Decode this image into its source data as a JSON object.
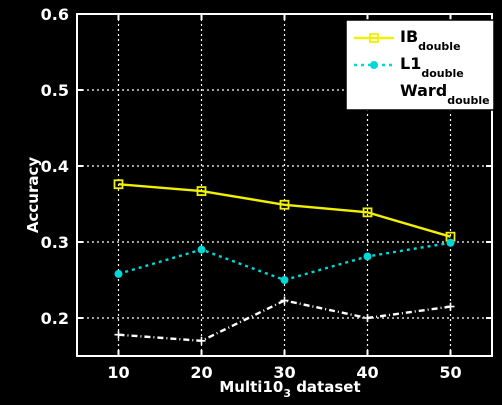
{
  "chart_data": {
    "type": "line",
    "x": [
      10,
      20,
      30,
      40,
      50
    ],
    "xlim": [
      5,
      55
    ],
    "ylim": [
      0.15,
      0.6
    ],
    "xticks": [
      10,
      20,
      30,
      40,
      50
    ],
    "yticks": [
      0.2,
      0.3,
      0.4,
      0.5,
      0.6
    ],
    "xtick_labels": [
      "10",
      "20",
      "30",
      "40",
      "50"
    ],
    "ytick_labels": [
      "0.2",
      "0.3",
      "0.4",
      "0.5",
      "0.6"
    ],
    "xlabel": {
      "main": "Multi10",
      "sub": "3",
      "suffix": " dataset"
    },
    "ylabel": "Accuracy",
    "grid": true,
    "legend_position": "top-right",
    "series": [
      {
        "name_main": "IB",
        "name_sub": "double",
        "color": "#f0f000",
        "marker": "square",
        "dash": "",
        "values": [
          0.376,
          0.367,
          0.349,
          0.339,
          0.307
        ]
      },
      {
        "name_main": "L1",
        "name_sub": "double",
        "color": "#00d8d8",
        "marker": "circle",
        "dash": "3,4",
        "values": [
          0.258,
          0.29,
          0.25,
          0.281,
          0.299
        ]
      },
      {
        "name_main": "Ward",
        "name_sub": "double",
        "color": "#ffffff",
        "marker": "plus",
        "dash": "6,3,1,3",
        "values": [
          0.178,
          0.17,
          0.223,
          0.2,
          0.215
        ]
      }
    ]
  }
}
